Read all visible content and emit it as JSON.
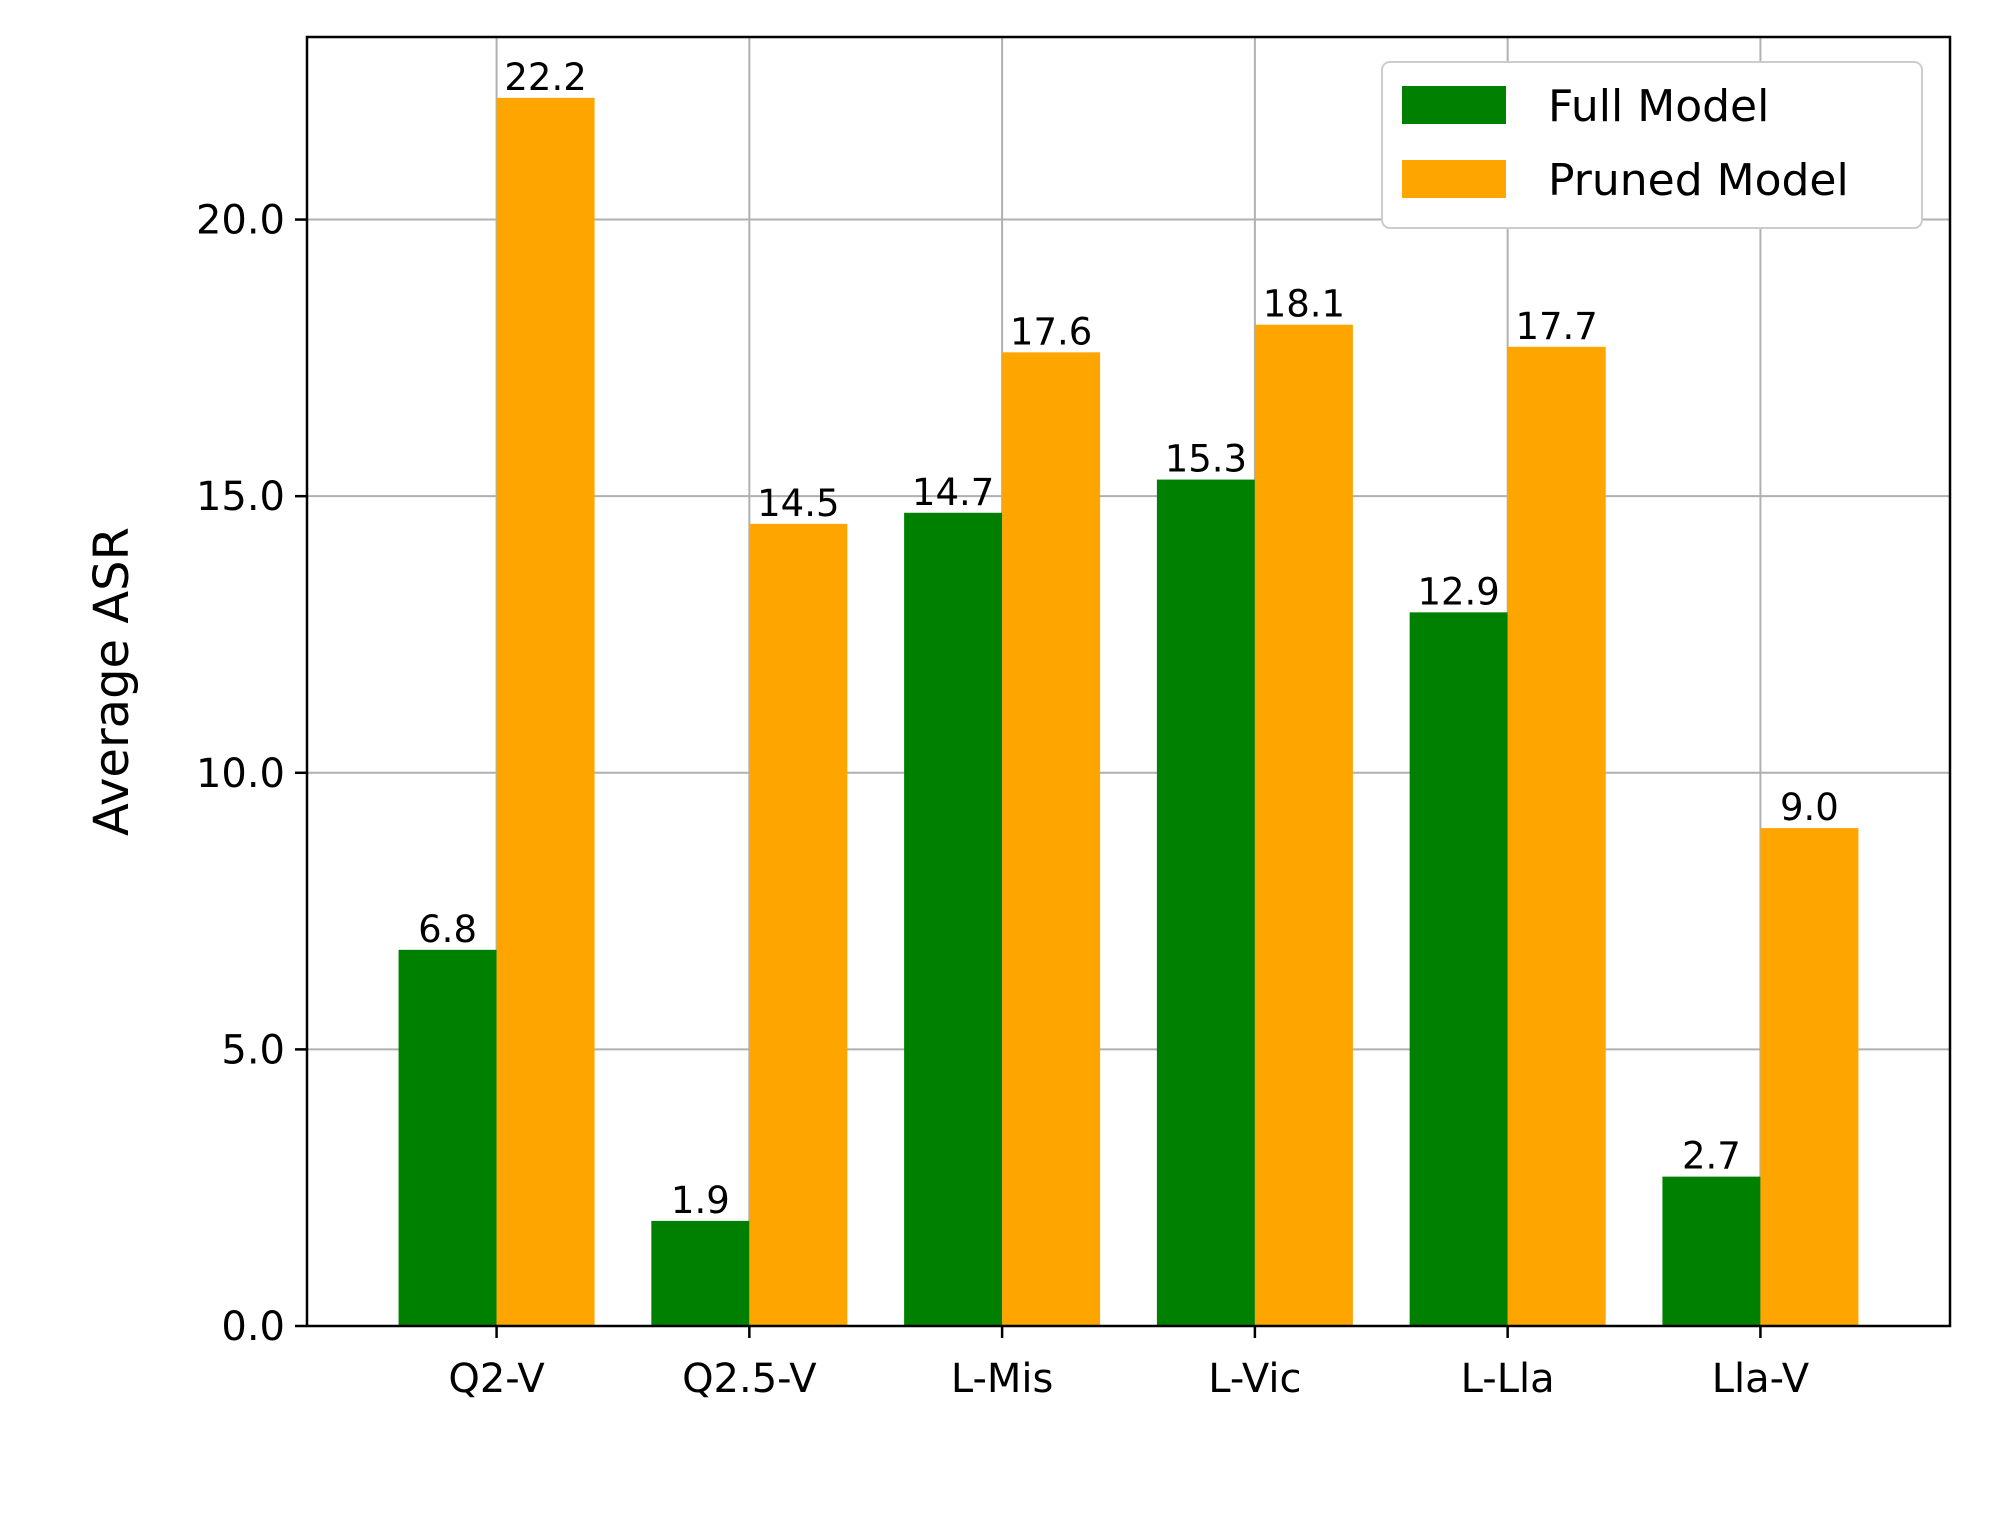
{
  "chart_data": {
    "type": "bar",
    "categories": [
      "Q2-V",
      "Q2.5-V",
      "L-Mis",
      "L-Vic",
      "L-Lla",
      "Lla-V"
    ],
    "series": [
      {
        "name": "Full Model",
        "color": "#008000",
        "values": [
          6.8,
          1.9,
          14.7,
          15.3,
          12.9,
          2.7
        ]
      },
      {
        "name": "Pruned Model",
        "color": "#FFA500",
        "values": [
          22.2,
          14.5,
          17.6,
          18.1,
          17.7,
          9.0
        ]
      }
    ],
    "data_labels": [
      [
        "6.8",
        "1.9",
        "14.7",
        "15.3",
        "12.9",
        "2.7"
      ],
      [
        "22.2",
        "14.5",
        "17.6",
        "18.1",
        "17.7",
        "9.0"
      ]
    ],
    "title": "",
    "xlabel": "",
    "ylabel": "Average ASR",
    "ylim": [
      0,
      23.3
    ],
    "yticks": [
      0,
      5,
      10,
      15,
      20
    ],
    "ytick_labels": [
      "0.0",
      "5.0",
      "10.0",
      "15.0",
      "20.0"
    ],
    "grid": true,
    "legend_position": "top-right"
  }
}
